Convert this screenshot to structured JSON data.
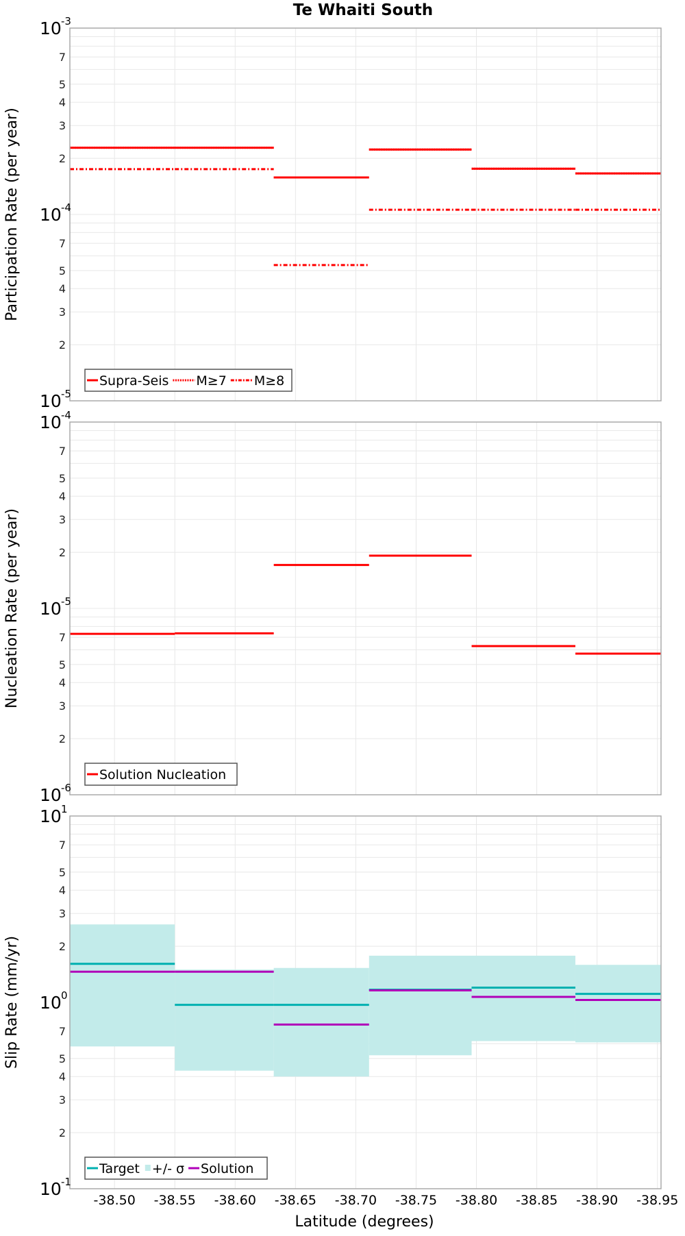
{
  "title": "Te Whaiti South",
  "x_axis": {
    "label": "Latitude (degrees)",
    "range": [
      -38.463,
      -38.953
    ],
    "ticks": [
      "-38.50",
      "-38.55",
      "-38.60",
      "-38.65",
      "-38.70",
      "-38.75",
      "-38.80",
      "-38.85",
      "-38.90",
      "-38.95"
    ]
  },
  "colors": {
    "red": "#ff0000",
    "target": "#00b0b0",
    "band": "#c2ebea",
    "solution": "#b000b8",
    "grid": "#e8e8e8",
    "frame": "#aaaaaa"
  },
  "chart_data": [
    {
      "type": "line",
      "panel": "participation",
      "title": "Te Whaiti South",
      "xlabel": "Latitude (degrees)",
      "ylabel": "Participation Rate (per year)",
      "yscale": "log",
      "ylim": [
        1e-05,
        0.001
      ],
      "y_major_ticks": [
        {
          "base": "10",
          "exp": "-5"
        },
        {
          "base": "10",
          "exp": "-4"
        },
        {
          "base": "10",
          "exp": "-3"
        }
      ],
      "y_minor_tick_labels": [
        "2",
        "3",
        "4",
        "5",
        "7"
      ],
      "grid": true,
      "legend_position": "lower-left",
      "segment_edges_lat": [
        -38.463,
        -38.55,
        -38.632,
        -38.711,
        -38.796,
        -38.882,
        -38.953
      ],
      "series": [
        {
          "name": "Supra-Seis",
          "style": "solid",
          "values": [
            0.000228,
            0.000228,
            0.000158,
            0.000223,
            0.000176,
            0.000166
          ]
        },
        {
          "name": "M≥7",
          "style": "dotted",
          "values": [
            0.000228,
            0.000228,
            0.000158,
            0.000223,
            0.000176,
            0.000166
          ]
        },
        {
          "name": "M≥8",
          "style": "dashdot",
          "values": [
            0.000175,
            0.000175,
            5.35e-05,
            0.000106,
            0.000106,
            0.000106
          ]
        }
      ]
    },
    {
      "type": "line",
      "panel": "nucleation",
      "xlabel": "Latitude (degrees)",
      "ylabel": "Nucleation Rate (per year)",
      "yscale": "log",
      "ylim": [
        1e-06,
        0.0001
      ],
      "y_major_ticks": [
        {
          "base": "10",
          "exp": "-6"
        },
        {
          "base": "10",
          "exp": "-5"
        },
        {
          "base": "10",
          "exp": "-4"
        }
      ],
      "y_minor_tick_labels": [
        "2",
        "3",
        "4",
        "5",
        "7"
      ],
      "grid": true,
      "legend_position": "lower-left",
      "segment_edges_lat": [
        -38.463,
        -38.55,
        -38.632,
        -38.711,
        -38.796,
        -38.882,
        -38.953
      ],
      "series": [
        {
          "name": "Solution Nucleation",
          "style": "solid",
          "values": [
            7.3e-06,
            7.35e-06,
            1.71e-05,
            1.92e-05,
            6.28e-06,
            5.72e-06
          ]
        }
      ]
    },
    {
      "type": "line",
      "panel": "slip",
      "xlabel": "Latitude (degrees)",
      "ylabel": "Slip Rate (mm/yr)",
      "yscale": "log",
      "ylim": [
        0.1,
        10
      ],
      "y_major_ticks": [
        {
          "base": "10",
          "exp": "-1"
        },
        {
          "base": "10",
          "exp": "0"
        },
        {
          "base": "10",
          "exp": "1"
        }
      ],
      "y_minor_tick_labels": [
        "2",
        "3",
        "4",
        "5",
        "7"
      ],
      "grid": true,
      "legend_position": "lower-left",
      "segment_edges_lat": [
        -38.463,
        -38.55,
        -38.632,
        -38.711,
        -38.796,
        -38.882,
        -38.953
      ],
      "series": [
        {
          "name": "Target",
          "style": "solid",
          "values": [
            1.61,
            0.97,
            0.97,
            1.17,
            1.2,
            1.11
          ]
        },
        {
          "name": "+/- σ",
          "style": "band",
          "upper": [
            2.62,
            1.5,
            1.53,
            1.78,
            1.78,
            1.59
          ],
          "lower": [
            0.58,
            0.43,
            0.4,
            0.52,
            0.62,
            0.61
          ]
        },
        {
          "name": "Solution",
          "style": "solid",
          "values": [
            1.46,
            1.46,
            0.76,
            1.16,
            1.07,
            1.03
          ]
        }
      ]
    }
  ],
  "legends": {
    "participation": [
      "Supra-Seis",
      "M≥7",
      "M≥8"
    ],
    "nucleation": [
      "Solution Nucleation"
    ],
    "slip": [
      "Target",
      "+/- σ",
      "Solution"
    ]
  }
}
